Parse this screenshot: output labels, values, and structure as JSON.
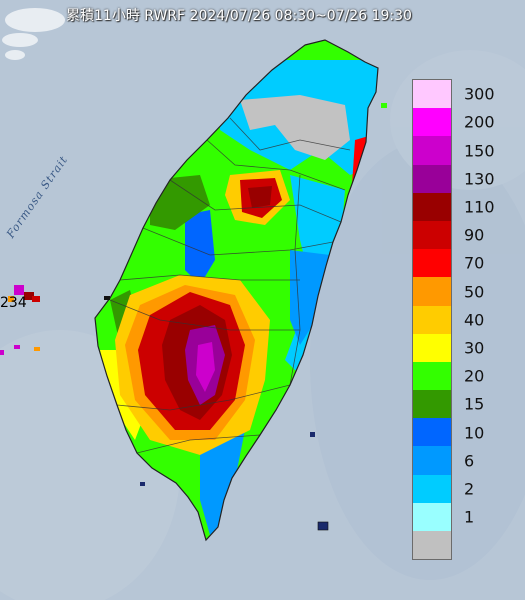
{
  "title": {
    "accum": "累積11小時",
    "model": "RWRF",
    "range": "2024/07/26 08:30~07/26 19:30"
  },
  "map": {
    "strait_label": "Formosa Strait",
    "offshore_value": "234",
    "colors": {
      "sea": "#b7c6d6",
      "land_gray": "#c2c2c2",
      "border": "#333333"
    }
  },
  "legend": {
    "items": [
      {
        "label": "300",
        "color": "#ffc8ff"
      },
      {
        "label": "200",
        "color": "#ff00ff"
      },
      {
        "label": "150",
        "color": "#cc00cc"
      },
      {
        "label": "130",
        "color": "#990099"
      },
      {
        "label": "110",
        "color": "#990000"
      },
      {
        "label": "90",
        "color": "#cc0000"
      },
      {
        "label": "70",
        "color": "#ff0000"
      },
      {
        "label": "50",
        "color": "#ff9900"
      },
      {
        "label": "40",
        "color": "#ffcc00"
      },
      {
        "label": "30",
        "color": "#ffff00"
      },
      {
        "label": "20",
        "color": "#33ff00"
      },
      {
        "label": "15",
        "color": "#339900"
      },
      {
        "label": "10",
        "color": "#0066ff"
      },
      {
        "label": "6",
        "color": "#0099ff"
      },
      {
        "label": "2",
        "color": "#00ccff"
      },
      {
        "label": "1",
        "color": "#99ffff"
      },
      {
        "label": "",
        "color": "#c0c0c0"
      }
    ]
  }
}
